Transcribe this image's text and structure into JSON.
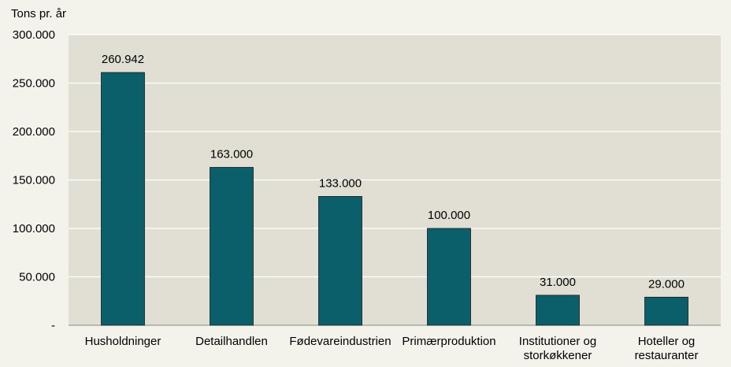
{
  "chart_data": {
    "type": "bar",
    "ylabel": "Tons pr. år",
    "categories": [
      [
        "Husholdninger"
      ],
      [
        "Detailhandlen"
      ],
      [
        "Fødevareindustrien"
      ],
      [
        "Primærproduktion"
      ],
      [
        "Institutioner og",
        "storkøkkener"
      ],
      [
        "Hoteller og",
        "restauranter"
      ]
    ],
    "values": [
      260942,
      163000,
      133000,
      100000,
      31000,
      29000
    ],
    "data_labels": [
      "260.942",
      "163.000",
      "133.000",
      "100.000",
      "31.000",
      "29.000"
    ],
    "ylim": [
      0,
      300000
    ],
    "yticks": [
      0,
      50000,
      100000,
      150000,
      200000,
      250000,
      300000
    ],
    "ytick_labels": [
      "-",
      "50.000",
      "100.000",
      "150.000",
      "200.000",
      "250.000",
      "300.000"
    ],
    "grid": true,
    "colors": {
      "bar": "#0b5f6a",
      "plot_bg": "#e1dfd4",
      "page_bg": "#f3f2eb",
      "grid": "#ffffff"
    }
  }
}
